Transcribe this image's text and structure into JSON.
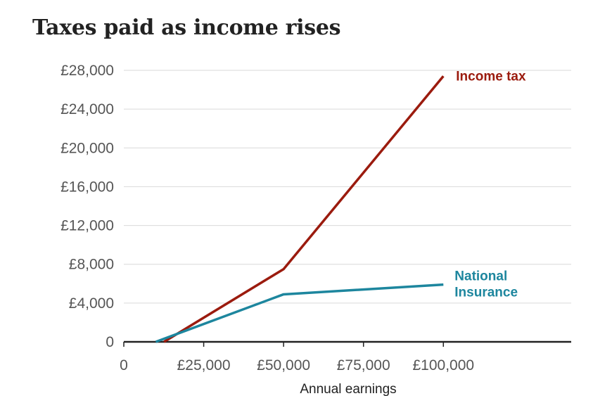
{
  "chart_data": {
    "type": "line",
    "title": "Taxes paid as income rises",
    "xlabel": "Annual earnings",
    "ylabel": "",
    "xlim": [
      0,
      140000
    ],
    "ylim": [
      0,
      28000
    ],
    "x_ticks": [
      {
        "value": 0,
        "label": "0"
      },
      {
        "value": 25000,
        "label": "£25,000"
      },
      {
        "value": 50000,
        "label": "£50,000"
      },
      {
        "value": 75000,
        "label": "£75,000"
      },
      {
        "value": 100000,
        "label": "£100,000"
      }
    ],
    "y_ticks": [
      {
        "value": 0,
        "label": "0"
      },
      {
        "value": 4000,
        "label": "£4,000"
      },
      {
        "value": 8000,
        "label": "£8,000"
      },
      {
        "value": 12000,
        "label": "£12,000"
      },
      {
        "value": 16000,
        "label": "£16,000"
      },
      {
        "value": 20000,
        "label": "£20,000"
      },
      {
        "value": 24000,
        "label": "£24,000"
      },
      {
        "value": 28000,
        "label": "£28,000"
      }
    ],
    "grid": "horizontal",
    "series": [
      {
        "name": "Income tax",
        "color": "#9b1b0e",
        "points": [
          {
            "x": 12570,
            "y": 0
          },
          {
            "x": 50000,
            "y": 7500
          },
          {
            "x": 100000,
            "y": 27400
          }
        ]
      },
      {
        "name": "National Insurance",
        "label_lines": [
          "National",
          "Insurance"
        ],
        "color": "#1d869e",
        "points": [
          {
            "x": 10000,
            "y": 0
          },
          {
            "x": 50000,
            "y": 4900
          },
          {
            "x": 100000,
            "y": 5900
          }
        ]
      }
    ]
  }
}
